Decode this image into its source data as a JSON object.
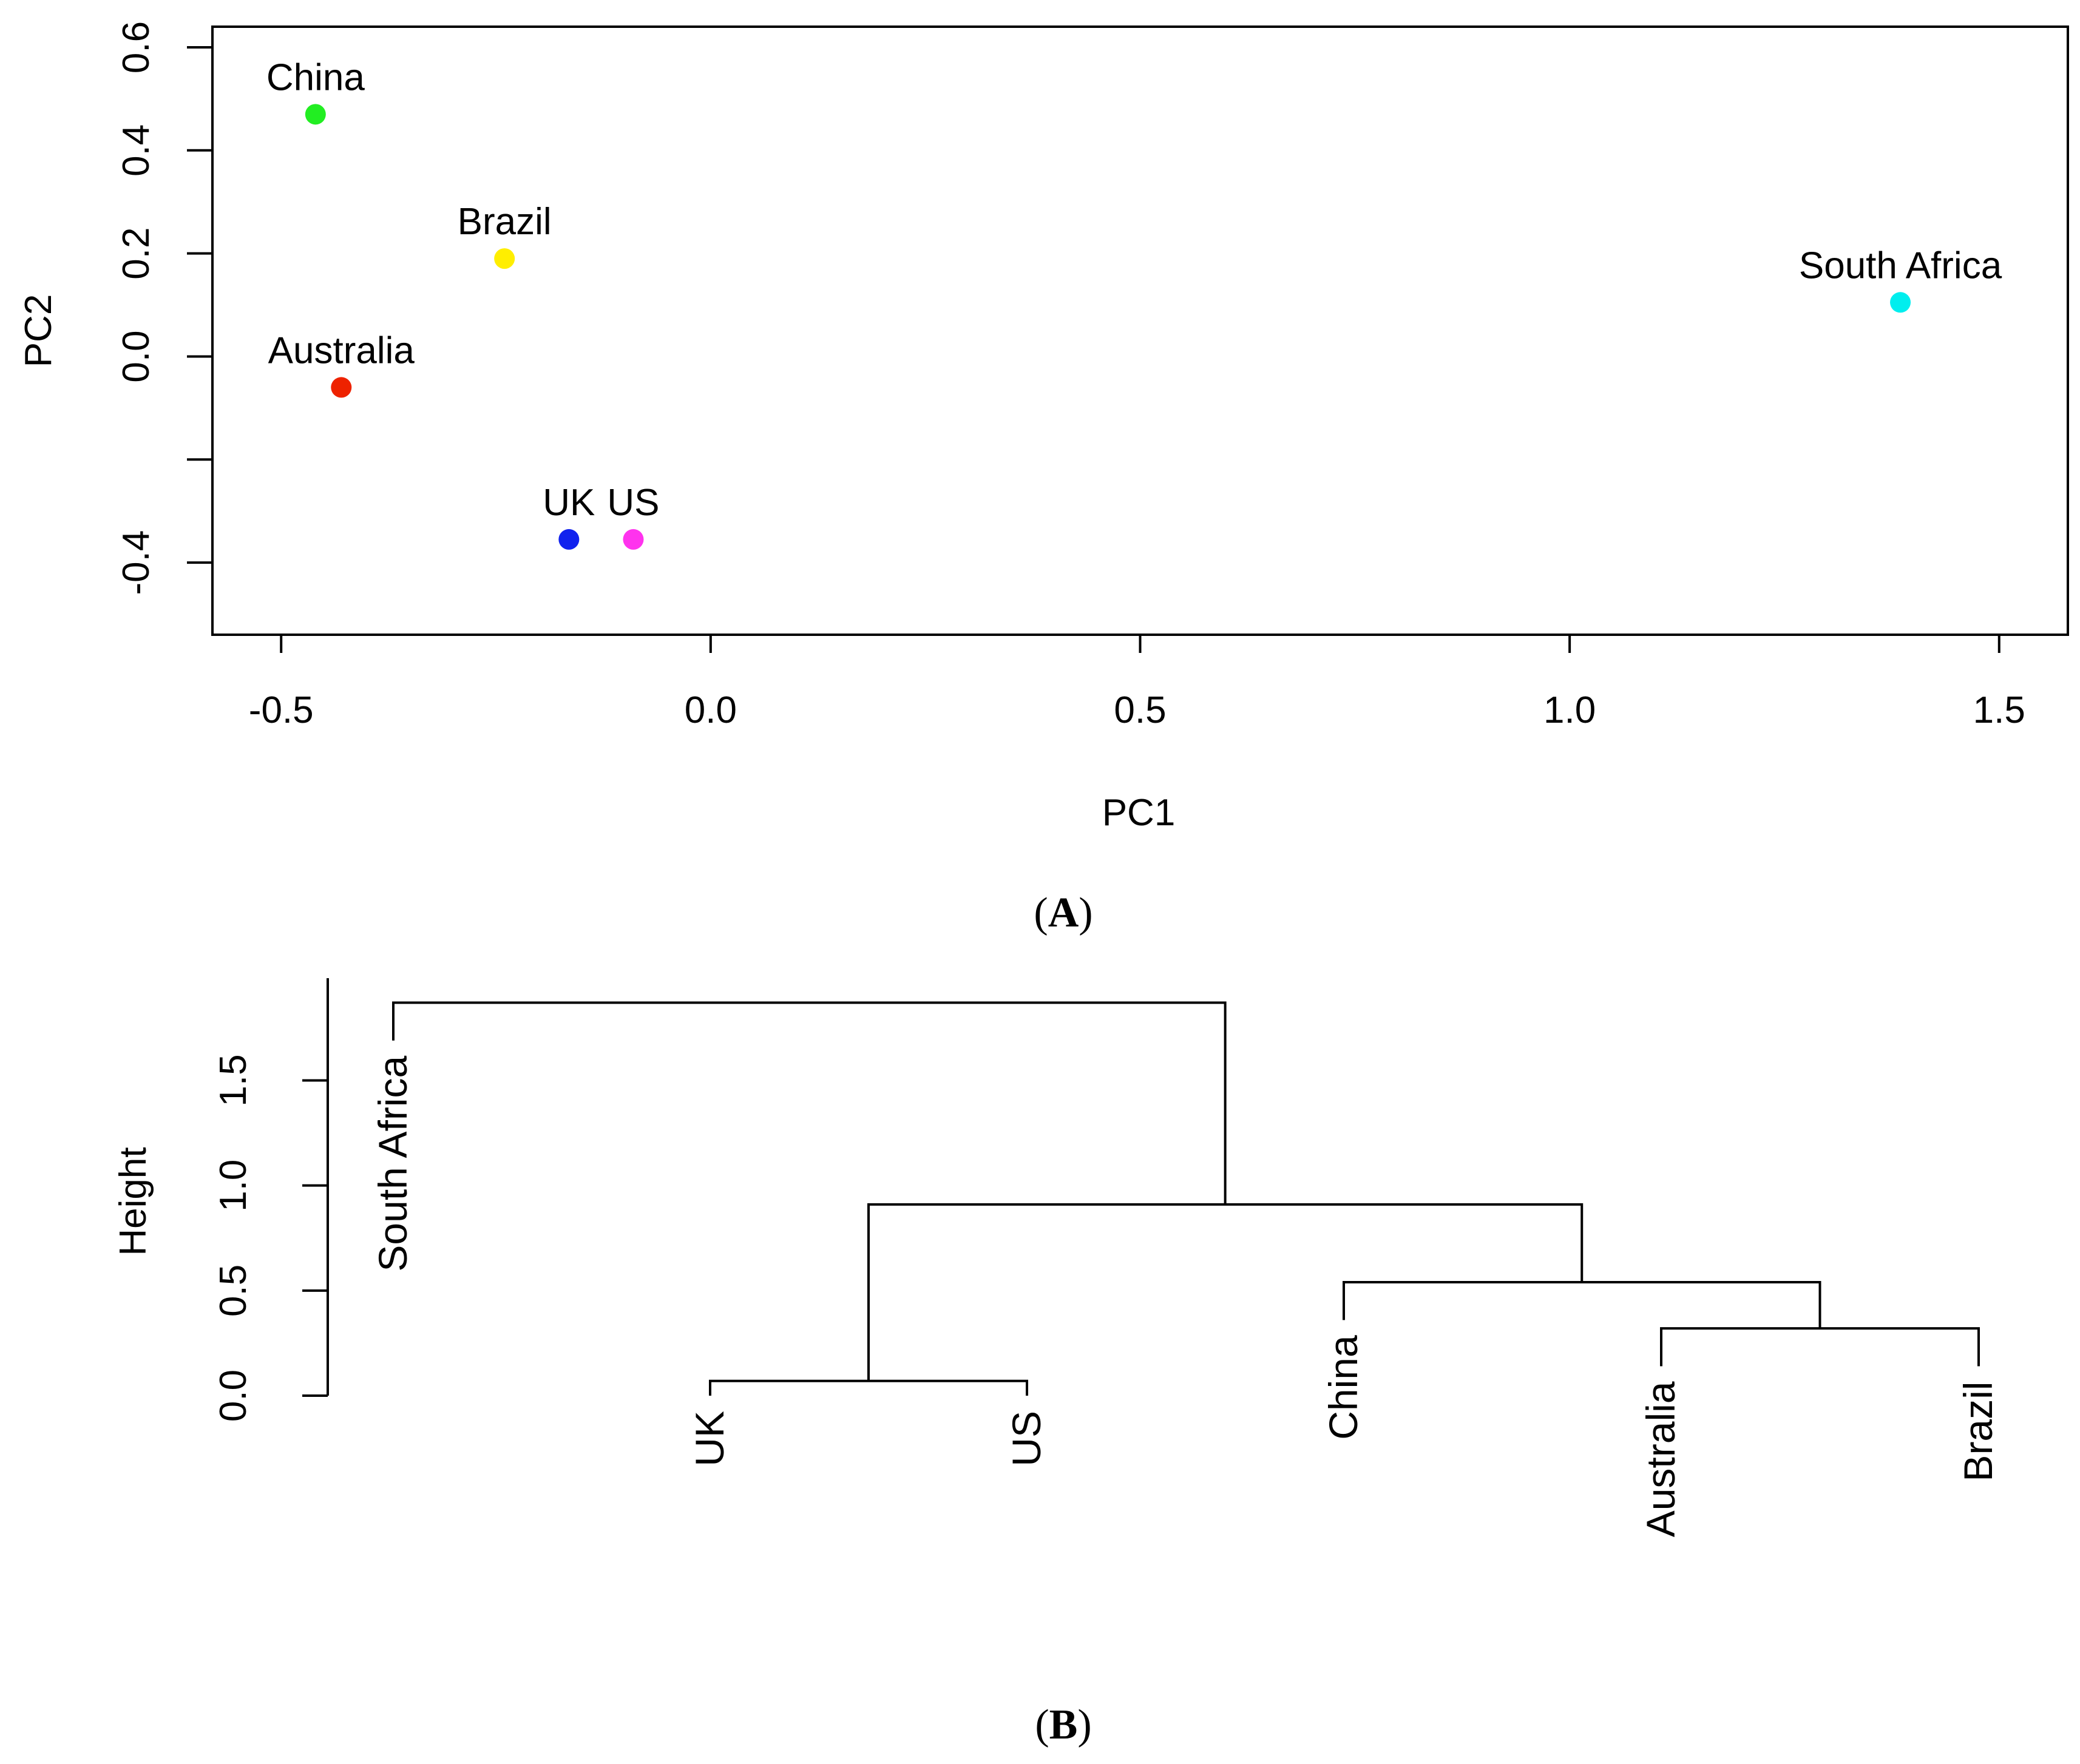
{
  "chart_data": [
    {
      "type": "scatter",
      "panel_label": "A",
      "title": "",
      "xlabel": "PC1",
      "ylabel": "PC2",
      "xlim": [
        -0.58,
        1.58
      ],
      "ylim": [
        -0.54,
        0.64
      ],
      "x_ticks": [
        -0.5,
        0.0,
        0.5,
        1.0,
        1.5
      ],
      "x_tick_labels": [
        "-0.5",
        "0.0",
        "0.5",
        "1.0",
        "1.5"
      ],
      "y_ticks": [
        -0.4,
        -0.2,
        0.0,
        0.2,
        0.4,
        0.6
      ],
      "y_tick_labels": [
        "-0.4",
        "",
        "0.0",
        "0.2",
        "0.4",
        "0.6"
      ],
      "grid": false,
      "points": [
        {
          "label": "China",
          "x": -0.46,
          "y": 0.47,
          "color": "#22ee22"
        },
        {
          "label": "Brazil",
          "x": -0.24,
          "y": 0.19,
          "color": "#ffee00"
        },
        {
          "label": "Australia",
          "x": -0.43,
          "y": -0.06,
          "color": "#ee2200"
        },
        {
          "label": "UK",
          "x": -0.165,
          "y": -0.355,
          "color": "#1122ee"
        },
        {
          "label": "US",
          "x": -0.09,
          "y": -0.355,
          "color": "#ff33ee"
        },
        {
          "label": "South Africa",
          "x": 1.385,
          "y": 0.105,
          "color": "#00eeee"
        }
      ]
    },
    {
      "type": "dendrogram",
      "panel_label": "B",
      "ylabel": "Height",
      "ylim": [
        0,
        1.9
      ],
      "y_ticks": [
        0.0,
        0.5,
        1.0,
        1.5
      ],
      "y_tick_labels": [
        "0.0",
        "0.5",
        "1.0",
        "1.5"
      ],
      "leaves": [
        "South Africa",
        "UK",
        "US",
        "China",
        "Australia",
        "Brazil"
      ],
      "merges": [
        {
          "left": "UK",
          "right": "US",
          "height": 0.07
        },
        {
          "left": "Australia",
          "right": "Brazil",
          "height": 0.32
        },
        {
          "left": "China",
          "right": "Australia+Brazil",
          "height": 0.54
        },
        {
          "left": "UK+US",
          "right": "China+Australia+Brazil",
          "height": 0.91
        },
        {
          "left": "South Africa",
          "right": "rest",
          "height": 1.87
        }
      ]
    }
  ]
}
